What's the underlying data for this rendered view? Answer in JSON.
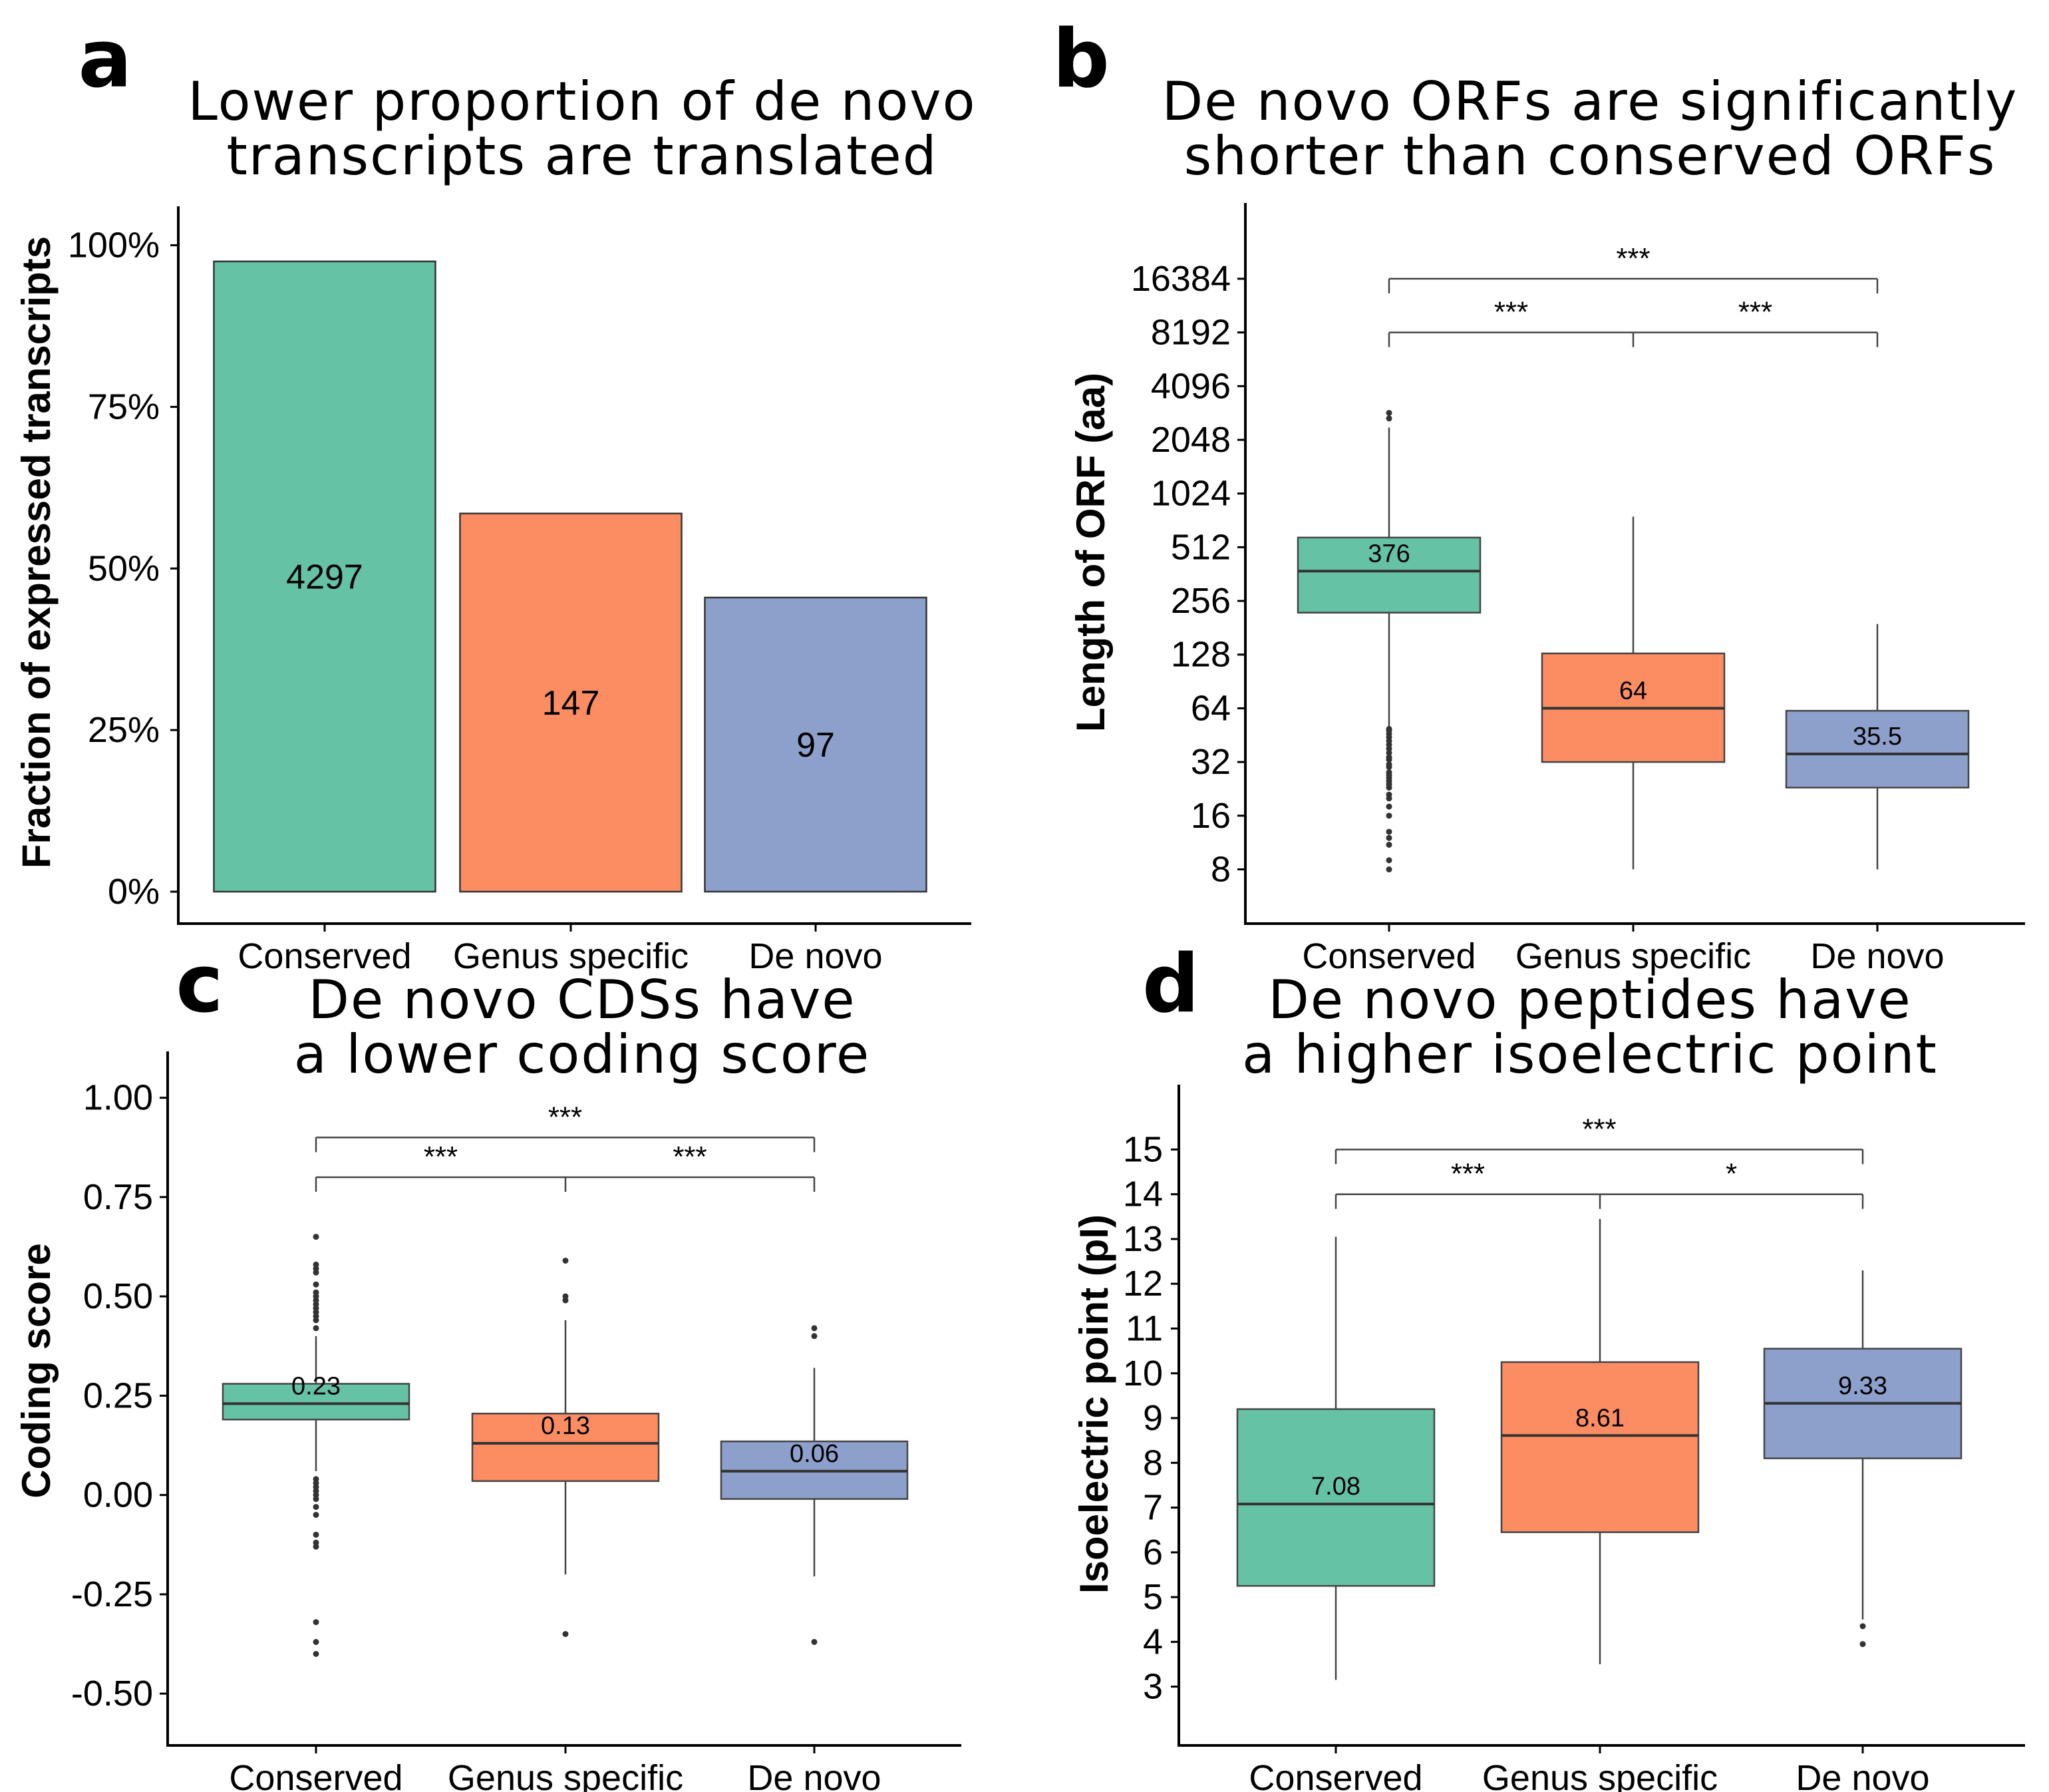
{
  "colors": {
    "conserved": "#66c2a5",
    "genus_specific": "#fc8d62",
    "de_novo": "#8da0cb"
  },
  "chart_data": [
    {
      "id": "a",
      "panel_label": "a",
      "type": "bar",
      "title_lines": [
        "Lower proportion of de novo",
        "transcripts are translated"
      ],
      "ylabel": "Fraction of expressed transcripts",
      "categories": [
        "Conserved",
        "Genus specific",
        "De novo"
      ],
      "values": [
        0.975,
        0.585,
        0.455
      ],
      "bar_labels": [
        "4297",
        "147",
        "97"
      ],
      "ylim": [
        0,
        1.05
      ],
      "yticks": [
        0,
        0.25,
        0.5,
        0.75,
        1.0
      ],
      "ytick_labels": [
        "0%",
        "25%",
        "50%",
        "75%",
        "100%"
      ],
      "grid": false,
      "legend": "none"
    },
    {
      "id": "b",
      "panel_label": "b",
      "type": "box",
      "scale": "log2",
      "title_lines": [
        "De novo ORFs are significantly",
        "shorter than conserved ORFs"
      ],
      "ylabel": "Length of ORF (aa)",
      "categories": [
        "Conserved",
        "Genus specific",
        "De novo"
      ],
      "ylim": [
        6,
        40000
      ],
      "yticks": [
        8,
        16,
        32,
        64,
        128,
        256,
        512,
        1024,
        2048,
        4096,
        8192,
        16384
      ],
      "ytick_labels": [
        "8",
        "16",
        "32",
        "64",
        "128",
        "256",
        "512",
        "1024",
        "2048",
        "4096",
        "8192",
        "16384"
      ],
      "boxes": [
        {
          "q1": 220,
          "median": 376,
          "q3": 580,
          "whisker_low": 50,
          "whisker_high": 2400,
          "median_label": "376",
          "outliers": [
            8,
            9,
            11,
            12,
            13,
            16,
            18,
            20,
            21,
            23,
            24,
            25,
            26,
            27,
            28,
            30,
            31,
            33,
            34,
            36,
            38,
            40,
            42,
            44,
            46,
            48,
            49,
            2700,
            2900
          ]
        },
        {
          "q1": 32,
          "median": 64,
          "q3": 130,
          "whisker_low": 8,
          "whisker_high": 760,
          "median_label": "64",
          "outliers": []
        },
        {
          "q1": 23,
          "median": 35.5,
          "q3": 62,
          "whisker_low": 8,
          "whisker_high": 190,
          "median_label": "35.5",
          "outliers": []
        }
      ],
      "brackets": [
        {
          "from": 0,
          "to": 2,
          "y": 16384,
          "label": "***",
          "middle_tick": false
        },
        {
          "from": 0,
          "to": 1,
          "y": 8192,
          "label": "***",
          "middle_tick": true,
          "pair_label_second": "***"
        }
      ]
    },
    {
      "id": "c",
      "panel_label": "c",
      "type": "box",
      "scale": "linear",
      "title_lines": [
        "De novo CDSs have",
        "a lower coding score"
      ],
      "ylabel": "Coding score",
      "categories": [
        "Conserved",
        "Genus specific",
        "De novo"
      ],
      "ylim": [
        -0.55,
        1.1
      ],
      "yticks": [
        -0.5,
        -0.25,
        0.0,
        0.25,
        0.5,
        0.75,
        1.0
      ],
      "ytick_labels": [
        "-0.50",
        "-0.25",
        "0.00",
        "0.25",
        "0.50",
        "0.75",
        "1.00"
      ],
      "boxes": [
        {
          "q1": 0.19,
          "median": 0.23,
          "q3": 0.28,
          "whisker_low": 0.06,
          "whisker_high": 0.4,
          "median_label": "0.23",
          "outliers": [
            -0.4,
            -0.37,
            -0.32,
            -0.13,
            -0.12,
            -0.1,
            -0.05,
            -0.03,
            -0.01,
            0.0,
            0.01,
            0.02,
            0.03,
            0.04,
            0.42,
            0.44,
            0.45,
            0.46,
            0.47,
            0.48,
            0.49,
            0.5,
            0.51,
            0.53,
            0.56,
            0.57,
            0.58,
            0.65
          ]
        },
        {
          "q1": 0.035,
          "median": 0.13,
          "q3": 0.205,
          "whisker_low": -0.2,
          "whisker_high": 0.44,
          "median_label": "0.13",
          "outliers": [
            -0.35,
            0.49,
            0.5,
            0.59
          ]
        },
        {
          "q1": -0.01,
          "median": 0.06,
          "q3": 0.135,
          "whisker_low": -0.205,
          "whisker_high": 0.32,
          "median_label": "0.06",
          "outliers": [
            -0.37,
            0.4,
            0.42
          ]
        }
      ],
      "brackets": [
        {
          "from": 0,
          "to": 2,
          "y": 0.9,
          "label": "***",
          "middle_tick": false
        },
        {
          "from": 0,
          "to": 1,
          "y": 0.8,
          "label": "***",
          "middle_tick": true,
          "pair_label_second": "***"
        }
      ]
    },
    {
      "id": "d",
      "panel_label": "d",
      "type": "box",
      "scale": "linear",
      "title_lines": [
        "De novo peptides have",
        "a higher isoelectric point"
      ],
      "ylabel": "Isoelectric point (pI)",
      "categories": [
        "Conserved",
        "Genus specific",
        "De novo"
      ],
      "ylim": [
        2.4,
        16.3
      ],
      "yticks": [
        3,
        4,
        5,
        6,
        7,
        8,
        9,
        10,
        11,
        12,
        13,
        14,
        15
      ],
      "ytick_labels": [
        "3",
        "4",
        "5",
        "6",
        "7",
        "8",
        "9",
        "10",
        "11",
        "12",
        "13",
        "14",
        "15"
      ],
      "boxes": [
        {
          "q1": 5.25,
          "median": 7.08,
          "q3": 9.2,
          "whisker_low": 3.15,
          "whisker_high": 13.05,
          "median_label": "7.08",
          "outliers": []
        },
        {
          "q1": 6.45,
          "median": 8.61,
          "q3": 10.25,
          "whisker_low": 3.5,
          "whisker_high": 13.45,
          "median_label": "8.61",
          "outliers": []
        },
        {
          "q1": 8.1,
          "median": 9.33,
          "q3": 10.55,
          "whisker_low": 4.5,
          "whisker_high": 12.3,
          "median_label": "9.33",
          "outliers": [
            3.95,
            4.35
          ]
        }
      ],
      "brackets": [
        {
          "from": 0,
          "to": 2,
          "y": 15,
          "label": "***",
          "middle_tick": false
        },
        {
          "from": 0,
          "to": 1,
          "y": 14,
          "label": "***",
          "middle_tick": true,
          "pair_label_second": "*"
        }
      ]
    }
  ]
}
